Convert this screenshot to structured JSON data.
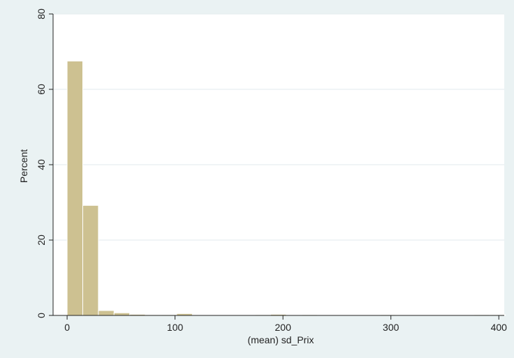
{
  "chart_data": {
    "type": "bar",
    "subtype": "histogram",
    "xlabel": "(mean) sd_Prix",
    "ylabel": "Percent",
    "xlim": [
      -13,
      405
    ],
    "ylim": [
      0,
      80
    ],
    "x_ticks": [
      0,
      100,
      200,
      300,
      400
    ],
    "y_ticks": [
      0,
      20,
      40,
      60,
      80
    ],
    "grid": "horizontal",
    "colors": {
      "bar_fill": "#cdc191",
      "bar_stroke": "#ffffff",
      "background_outer": "#eaf2f3",
      "plot_background": "#ffffff",
      "gridline": "#e6eef0",
      "axis": "#222222"
    },
    "bins": [
      {
        "x0": 0,
        "x1": 14.5,
        "value": 67.5
      },
      {
        "x0": 14.5,
        "x1": 29,
        "value": 29.2
      },
      {
        "x0": 29,
        "x1": 43.5,
        "value": 1.3
      },
      {
        "x0": 43.5,
        "x1": 58,
        "value": 0.7
      },
      {
        "x0": 58,
        "x1": 72.5,
        "value": 0.3
      },
      {
        "x0": 72.5,
        "x1": 87,
        "value": 0.2
      },
      {
        "x0": 87,
        "x1": 101.5,
        "value": 0.2
      },
      {
        "x0": 101.5,
        "x1": 116,
        "value": 0.5
      },
      {
        "x0": 174,
        "x1": 188.5,
        "value": 0.2
      },
      {
        "x0": 188.5,
        "x1": 203,
        "value": 0.3
      },
      {
        "x0": 217.5,
        "x1": 232,
        "value": 0.2
      },
      {
        "x0": 290,
        "x1": 304.5,
        "value": 0.2
      },
      {
        "x0": 377,
        "x1": 391.5,
        "value": 0.2
      },
      {
        "x0": 391.5,
        "x1": 406,
        "value": 0.2
      }
    ]
  }
}
